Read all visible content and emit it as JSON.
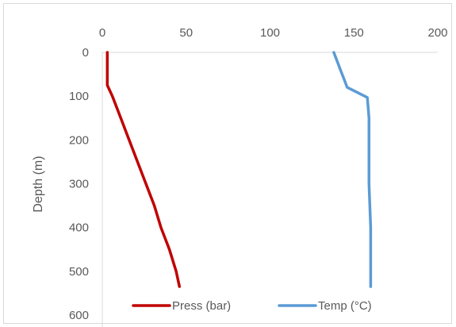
{
  "chart_data": {
    "type": "line",
    "title": "",
    "xlabel": "",
    "ylabel": "Depth (m)",
    "xlim": [
      0,
      200
    ],
    "ylim": [
      0,
      600
    ],
    "y_inverted": true,
    "x_axis_position": "top",
    "x_ticks": [
      "0",
      "50",
      "100",
      "150",
      "200"
    ],
    "y_ticks": [
      "0",
      "100",
      "200",
      "300",
      "400",
      "500",
      "600"
    ],
    "grid": false,
    "legend_position": "bottom",
    "series": [
      {
        "name": "Press (bar)",
        "color": "#c00000",
        "points": [
          [
            3,
            0
          ],
          [
            3,
            20
          ],
          [
            3,
            40
          ],
          [
            3,
            60
          ],
          [
            3,
            75
          ],
          [
            6,
            100
          ],
          [
            11,
            150
          ],
          [
            16,
            200
          ],
          [
            21,
            250
          ],
          [
            26,
            300
          ],
          [
            31,
            350
          ],
          [
            35,
            400
          ],
          [
            40,
            450
          ],
          [
            44,
            500
          ],
          [
            46,
            535
          ]
        ]
      },
      {
        "name": "Temp (°C)",
        "color": "#5b9bd5",
        "points": [
          [
            138,
            0
          ],
          [
            140,
            20
          ],
          [
            142,
            40
          ],
          [
            144,
            60
          ],
          [
            146,
            80
          ],
          [
            158,
            103
          ],
          [
            159,
            150
          ],
          [
            159,
            200
          ],
          [
            159,
            300
          ],
          [
            160,
            400
          ],
          [
            160,
            500
          ],
          [
            160,
            535
          ]
        ]
      }
    ]
  }
}
